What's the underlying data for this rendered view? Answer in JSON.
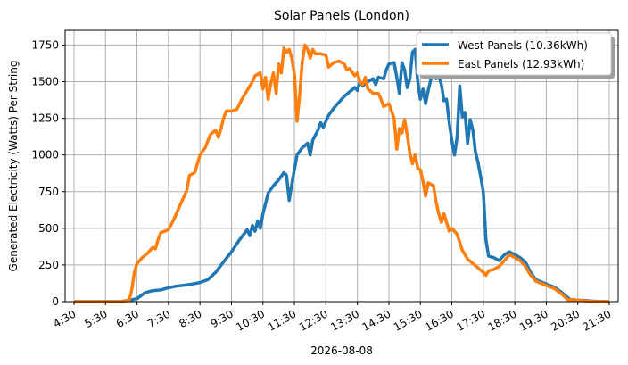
{
  "chart_data": {
    "type": "line",
    "title": "Solar Panels (London)",
    "xlabel": "2026-08-08",
    "ylabel": "Generated Electricity (Watts) Per String",
    "xlim": [
      "4:30",
      "21:30"
    ],
    "ylim": [
      0,
      1850
    ],
    "xticks": [
      "4:30",
      "5:30",
      "6:30",
      "7:30",
      "8:30",
      "9:30",
      "10:30",
      "11:30",
      "12:30",
      "13:30",
      "14:30",
      "15:30",
      "16:30",
      "17:30",
      "18:30",
      "19:30",
      "20:30",
      "21:30"
    ],
    "yticks": [
      0,
      250,
      500,
      750,
      1000,
      1250,
      1500,
      1750
    ],
    "grid": true,
    "legend_position": "upper right",
    "series": [
      {
        "name": "West Panels (10.36kWh)",
        "color": "#1f77b4",
        "points": [
          [
            "4:30",
            0
          ],
          [
            "5:30",
            0
          ],
          [
            "6:00",
            0
          ],
          [
            "6:15",
            10
          ],
          [
            "6:30",
            20
          ],
          [
            "6:45",
            60
          ],
          [
            "7:00",
            75
          ],
          [
            "7:15",
            80
          ],
          [
            "7:30",
            95
          ],
          [
            "7:45",
            105
          ],
          [
            "8:00",
            112
          ],
          [
            "8:15",
            120
          ],
          [
            "8:30",
            130
          ],
          [
            "8:45",
            150
          ],
          [
            "9:00",
            200
          ],
          [
            "9:15",
            270
          ],
          [
            "9:30",
            340
          ],
          [
            "9:45",
            420
          ],
          [
            "10:00",
            490
          ],
          [
            "10:05",
            450
          ],
          [
            "10:10",
            520
          ],
          [
            "10:15",
            480
          ],
          [
            "10:20",
            550
          ],
          [
            "10:25",
            500
          ],
          [
            "10:30",
            600
          ],
          [
            "10:40",
            740
          ],
          [
            "10:50",
            790
          ],
          [
            "11:00",
            830
          ],
          [
            "11:10",
            880
          ],
          [
            "11:15",
            860
          ],
          [
            "11:20",
            690
          ],
          [
            "11:25",
            800
          ],
          [
            "11:35",
            1000
          ],
          [
            "11:45",
            1050
          ],
          [
            "11:55",
            1080
          ],
          [
            "12:00",
            1000
          ],
          [
            "12:05",
            1100
          ],
          [
            "12:15",
            1170
          ],
          [
            "12:20",
            1220
          ],
          [
            "12:25",
            1190
          ],
          [
            "12:35",
            1270
          ],
          [
            "12:45",
            1320
          ],
          [
            "12:55",
            1360
          ],
          [
            "13:05",
            1400
          ],
          [
            "13:15",
            1430
          ],
          [
            "13:25",
            1460
          ],
          [
            "13:30",
            1440
          ],
          [
            "13:35",
            1500
          ],
          [
            "13:40",
            1470
          ],
          [
            "13:50",
            1500
          ],
          [
            "14:00",
            1520
          ],
          [
            "14:05",
            1480
          ],
          [
            "14:10",
            1530
          ],
          [
            "14:20",
            1520
          ],
          [
            "14:25",
            1580
          ],
          [
            "14:30",
            1620
          ],
          [
            "14:40",
            1630
          ],
          [
            "14:45",
            1530
          ],
          [
            "14:50",
            1420
          ],
          [
            "14:55",
            1630
          ],
          [
            "15:00",
            1580
          ],
          [
            "15:05",
            1460
          ],
          [
            "15:10",
            1520
          ],
          [
            "15:15",
            1700
          ],
          [
            "15:20",
            1720
          ],
          [
            "15:25",
            1500
          ],
          [
            "15:30",
            1380
          ],
          [
            "15:35",
            1450
          ],
          [
            "15:40",
            1350
          ],
          [
            "15:45",
            1440
          ],
          [
            "15:55",
            1590
          ],
          [
            "16:00",
            1520
          ],
          [
            "16:05",
            1540
          ],
          [
            "16:10",
            1480
          ],
          [
            "16:15",
            1370
          ],
          [
            "16:20",
            1380
          ],
          [
            "16:25",
            1220
          ],
          [
            "16:30",
            1100
          ],
          [
            "16:35",
            1000
          ],
          [
            "16:40",
            1120
          ],
          [
            "16:45",
            1470
          ],
          [
            "16:50",
            1260
          ],
          [
            "16:55",
            1290
          ],
          [
            "17:00",
            1080
          ],
          [
            "17:05",
            1240
          ],
          [
            "17:10",
            1170
          ],
          [
            "17:15",
            1020
          ],
          [
            "17:20",
            950
          ],
          [
            "17:25",
            850
          ],
          [
            "17:30",
            750
          ],
          [
            "17:35",
            420
          ],
          [
            "17:40",
            310
          ],
          [
            "17:50",
            300
          ],
          [
            "18:00",
            280
          ],
          [
            "18:10",
            320
          ],
          [
            "18:20",
            340
          ],
          [
            "18:30",
            320
          ],
          [
            "18:40",
            300
          ],
          [
            "18:50",
            270
          ],
          [
            "19:00",
            200
          ],
          [
            "19:10",
            150
          ],
          [
            "19:30",
            120
          ],
          [
            "19:45",
            100
          ],
          [
            "20:00",
            60
          ],
          [
            "20:15",
            15
          ],
          [
            "20:30",
            10
          ],
          [
            "20:45",
            8
          ],
          [
            "21:00",
            3
          ],
          [
            "21:30",
            0
          ]
        ]
      },
      {
        "name": "East Panels (12.93kWh)",
        "color": "#ff7f0e",
        "points": [
          [
            "4:30",
            0
          ],
          [
            "5:30",
            0
          ],
          [
            "6:00",
            0
          ],
          [
            "6:15",
            10
          ],
          [
            "6:20",
            80
          ],
          [
            "6:25",
            200
          ],
          [
            "6:30",
            260
          ],
          [
            "6:40",
            300
          ],
          [
            "6:50",
            330
          ],
          [
            "7:00",
            370
          ],
          [
            "7:05",
            360
          ],
          [
            "7:10",
            420
          ],
          [
            "7:15",
            470
          ],
          [
            "7:30",
            490
          ],
          [
            "7:40",
            560
          ],
          [
            "7:50",
            640
          ],
          [
            "8:00",
            720
          ],
          [
            "8:05",
            760
          ],
          [
            "8:10",
            860
          ],
          [
            "8:20",
            880
          ],
          [
            "8:30",
            1000
          ],
          [
            "8:40",
            1050
          ],
          [
            "8:50",
            1140
          ],
          [
            "9:00",
            1170
          ],
          [
            "9:05",
            1120
          ],
          [
            "9:10",
            1180
          ],
          [
            "9:15",
            1250
          ],
          [
            "9:20",
            1300
          ],
          [
            "9:30",
            1300
          ],
          [
            "9:40",
            1310
          ],
          [
            "9:50",
            1380
          ],
          [
            "10:00",
            1440
          ],
          [
            "10:10",
            1500
          ],
          [
            "10:15",
            1540
          ],
          [
            "10:25",
            1560
          ],
          [
            "10:30",
            1450
          ],
          [
            "10:35",
            1530
          ],
          [
            "10:40",
            1380
          ],
          [
            "10:45",
            1490
          ],
          [
            "10:50",
            1560
          ],
          [
            "10:55",
            1420
          ],
          [
            "11:00",
            1620
          ],
          [
            "11:05",
            1560
          ],
          [
            "11:10",
            1730
          ],
          [
            "11:15",
            1700
          ],
          [
            "11:20",
            1720
          ],
          [
            "11:25",
            1660
          ],
          [
            "11:30",
            1550
          ],
          [
            "11:35",
            1230
          ],
          [
            "11:40",
            1410
          ],
          [
            "11:45",
            1640
          ],
          [
            "11:50",
            1750
          ],
          [
            "11:55",
            1720
          ],
          [
            "12:00",
            1660
          ],
          [
            "12:05",
            1720
          ],
          [
            "12:10",
            1690
          ],
          [
            "12:20",
            1690
          ],
          [
            "12:30",
            1680
          ],
          [
            "12:35",
            1600
          ],
          [
            "12:45",
            1630
          ],
          [
            "12:55",
            1640
          ],
          [
            "13:05",
            1620
          ],
          [
            "13:10",
            1580
          ],
          [
            "13:15",
            1590
          ],
          [
            "13:25",
            1540
          ],
          [
            "13:30",
            1560
          ],
          [
            "13:35",
            1500
          ],
          [
            "13:40",
            1480
          ],
          [
            "13:45",
            1530
          ],
          [
            "13:50",
            1450
          ],
          [
            "14:00",
            1420
          ],
          [
            "14:10",
            1420
          ],
          [
            "14:15",
            1380
          ],
          [
            "14:20",
            1330
          ],
          [
            "14:30",
            1350
          ],
          [
            "14:35",
            1300
          ],
          [
            "14:40",
            1250
          ],
          [
            "14:45",
            1040
          ],
          [
            "14:50",
            1180
          ],
          [
            "14:55",
            1150
          ],
          [
            "15:00",
            1240
          ],
          [
            "15:05",
            1140
          ],
          [
            "15:10",
            1010
          ],
          [
            "15:15",
            940
          ],
          [
            "15:20",
            1000
          ],
          [
            "15:25",
            910
          ],
          [
            "15:30",
            900
          ],
          [
            "15:35",
            820
          ],
          [
            "15:40",
            720
          ],
          [
            "15:45",
            810
          ],
          [
            "15:55",
            790
          ],
          [
            "16:00",
            680
          ],
          [
            "16:05",
            600
          ],
          [
            "16:10",
            540
          ],
          [
            "16:15",
            600
          ],
          [
            "16:20",
            540
          ],
          [
            "16:25",
            480
          ],
          [
            "16:30",
            500
          ],
          [
            "16:40",
            460
          ],
          [
            "16:50",
            350
          ],
          [
            "17:00",
            290
          ],
          [
            "17:10",
            260
          ],
          [
            "17:20",
            230
          ],
          [
            "17:30",
            200
          ],
          [
            "17:35",
            180
          ],
          [
            "17:40",
            210
          ],
          [
            "17:50",
            220
          ],
          [
            "18:00",
            240
          ],
          [
            "18:10",
            280
          ],
          [
            "18:20",
            320
          ],
          [
            "18:30",
            300
          ],
          [
            "18:40",
            280
          ],
          [
            "18:50",
            240
          ],
          [
            "19:00",
            180
          ],
          [
            "19:10",
            140
          ],
          [
            "19:30",
            110
          ],
          [
            "19:45",
            90
          ],
          [
            "20:00",
            50
          ],
          [
            "20:10",
            15
          ],
          [
            "20:30",
            10
          ],
          [
            "20:45",
            5
          ],
          [
            "21:00",
            2
          ],
          [
            "21:30",
            0
          ]
        ]
      }
    ]
  }
}
